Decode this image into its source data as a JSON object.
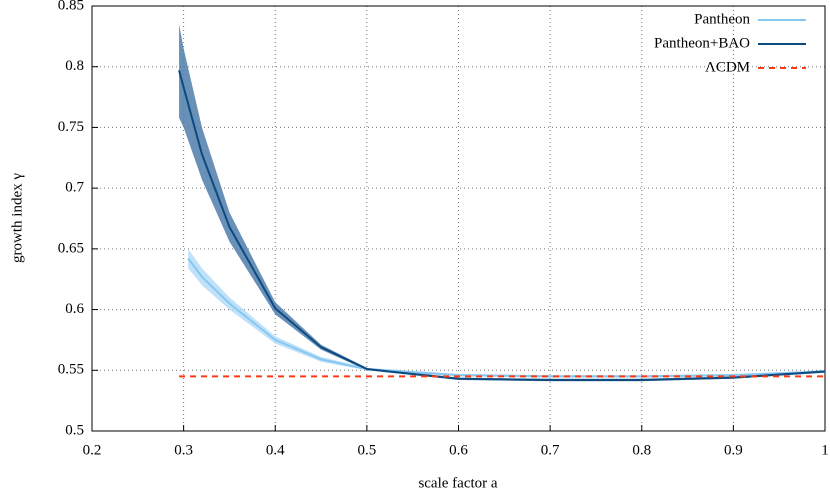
{
  "chart_data": {
    "type": "line",
    "xlabel": "scale factor a",
    "ylabel": "growth index γ",
    "xlim": [
      0.2,
      1
    ],
    "ylim": [
      0.5,
      0.85
    ],
    "xticks": [
      0.2,
      0.3,
      0.4,
      0.5,
      0.6,
      0.7,
      0.8,
      0.9,
      1
    ],
    "yticks": [
      0.5,
      0.55,
      0.6,
      0.65,
      0.7,
      0.75,
      0.8,
      0.85
    ],
    "grid": true,
    "legend": "top-right",
    "series": [
      {
        "name": "Pantheon",
        "color": "#87c8f2",
        "band_color": "#b5dcf7",
        "style": "solid",
        "x": [
          0.305,
          0.32,
          0.35,
          0.4,
          0.45,
          0.5,
          0.6,
          0.7,
          0.8,
          0.9,
          1.0
        ],
        "values": [
          0.642,
          0.627,
          0.605,
          0.575,
          0.559,
          0.551,
          0.546,
          0.545,
          0.545,
          0.546,
          0.549
        ],
        "lower": [
          0.634,
          0.62,
          0.6,
          0.572,
          0.557,
          0.55,
          0.545,
          0.544,
          0.544,
          0.545,
          0.548
        ],
        "upper": [
          0.65,
          0.634,
          0.61,
          0.578,
          0.561,
          0.552,
          0.547,
          0.546,
          0.546,
          0.547,
          0.55
        ]
      },
      {
        "name": "Pantheon+BAO",
        "color": "#0d4a80",
        "band_color": "#4f7eab",
        "style": "solid",
        "x": [
          0.295,
          0.3,
          0.32,
          0.35,
          0.4,
          0.45,
          0.5,
          0.6,
          0.7,
          0.8,
          0.9,
          1.0
        ],
        "values": [
          0.797,
          0.783,
          0.728,
          0.668,
          0.601,
          0.569,
          0.551,
          0.543,
          0.542,
          0.542,
          0.544,
          0.549
        ],
        "lower": [
          0.758,
          0.75,
          0.707,
          0.656,
          0.596,
          0.567,
          0.55,
          0.542,
          0.541,
          0.541,
          0.543,
          0.548
        ],
        "upper": [
          0.835,
          0.815,
          0.75,
          0.68,
          0.606,
          0.571,
          0.552,
          0.544,
          0.543,
          0.543,
          0.545,
          0.55
        ]
      },
      {
        "name": "ΛCDM",
        "color": "#ff3a10",
        "style": "dashed",
        "x": [
          0.295,
          1.0
        ],
        "values": [
          0.545,
          0.545
        ]
      }
    ]
  }
}
